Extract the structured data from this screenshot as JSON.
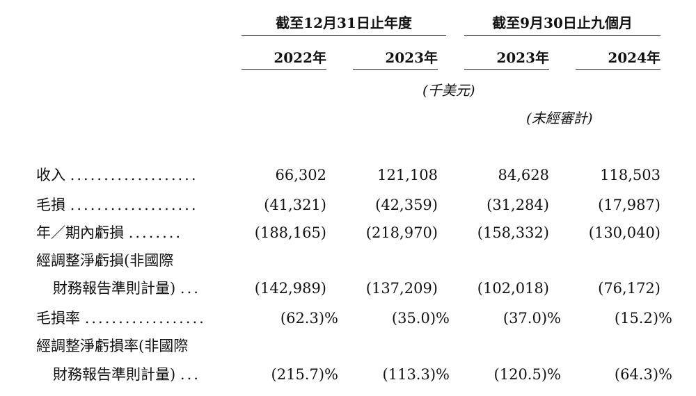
{
  "header": {
    "group1": "截至12月31日止年度",
    "group2": "截至9月30日止九個月",
    "years": [
      "2022年",
      "2023年",
      "2023年",
      "2024年"
    ],
    "unit": "(千美元)",
    "audit": "(未經審計)"
  },
  "rows": [
    {
      "label": "收入",
      "leader": "...................",
      "values": [
        "66,302",
        "121,108",
        "84,628",
        "118,503"
      ]
    },
    {
      "label": "毛損",
      "leader": "...................",
      "values": [
        "(41,321)",
        "(42,359)",
        "(31,284)",
        "(17,987)"
      ]
    },
    {
      "label": "年／期內虧損",
      "leader": "........",
      "values": [
        "(188,165)",
        "(218,970)",
        "(158,332)",
        "(130,040)"
      ]
    },
    {
      "label": "經調整淨虧損(非國際"
    },
    {
      "label": "財務報告準則計量)",
      "leader": "...",
      "indent": true,
      "values": [
        "(142,989)",
        "(137,209)",
        "(102,018)",
        "(76,172)"
      ]
    },
    {
      "label": "毛損率",
      "leader": "..................",
      "values": [
        "(62.3)%",
        "(35.0)%",
        "(37.0)%",
        "(15.2)%"
      ]
    },
    {
      "label": "經調整淨虧損率(非國際"
    },
    {
      "label": "財務報告準則計量)",
      "leader": "...",
      "indent": true,
      "values": [
        "(215.7)%",
        "(113.3)%",
        "(120.5)%",
        "(64.3)%"
      ]
    }
  ]
}
